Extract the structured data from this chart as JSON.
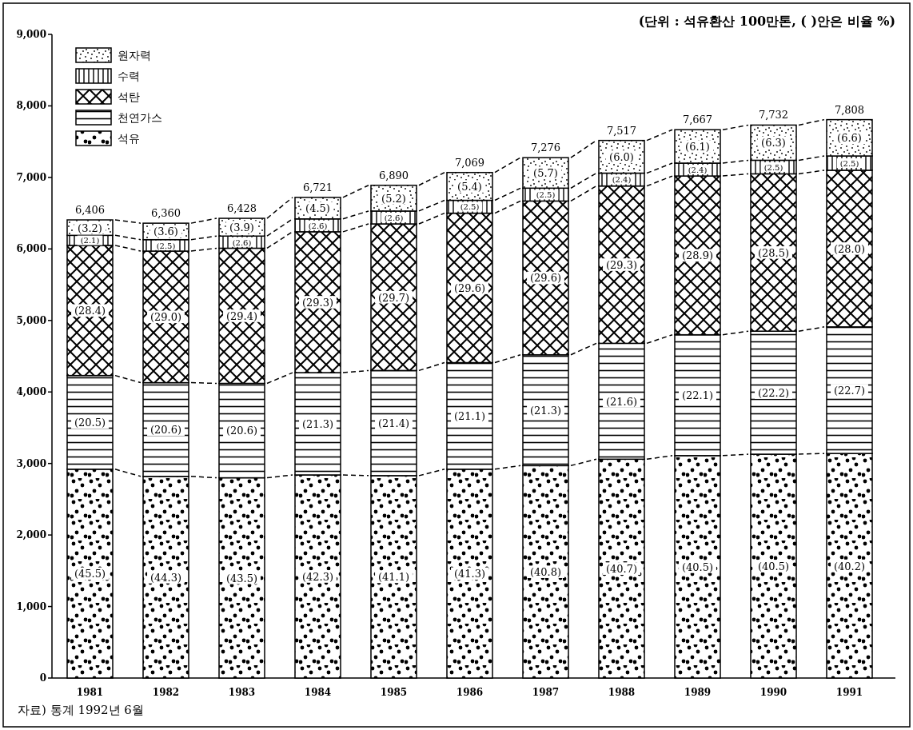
{
  "chart_data": {
    "type": "bar",
    "stacked": true,
    "subtitle": "(단위 : 석유환산 100만톤, (  )안은 비율 %)",
    "categories": [
      "1981",
      "1982",
      "1983",
      "1984",
      "1985",
      "1986",
      "1987",
      "1988",
      "1989",
      "1990",
      "1991"
    ],
    "series": [
      {
        "name": "석유",
        "color": "#000000",
        "values": [
          2920,
          2820,
          2800,
          2840,
          2830,
          2920,
          2970,
          3060,
          3110,
          3130,
          3140
        ]
      },
      {
        "name": "천연가스",
        "color": "#000000",
        "values": [
          1310,
          1310,
          1320,
          1430,
          1470,
          1490,
          1550,
          1620,
          1690,
          1720,
          1770
        ]
      },
      {
        "name": "석탄",
        "color": "#000000",
        "values": [
          1820,
          1840,
          1890,
          1970,
          2050,
          2090,
          2150,
          2200,
          2220,
          2200,
          2190
        ]
      },
      {
        "name": "수력",
        "color": "#000000",
        "values": [
          140,
          160,
          170,
          180,
          180,
          180,
          180,
          180,
          180,
          190,
          200
        ]
      },
      {
        "name": "원자력",
        "color": "#000000",
        "values": [
          216,
          230,
          248,
          301,
          360,
          389,
          426,
          457,
          467,
          492,
          508
        ]
      }
    ],
    "totals": [
      "6,406",
      "6,360",
      "6,428",
      "6,721",
      "6,890",
      "7,069",
      "7,276",
      "7,517",
      "7,667",
      "7,732",
      "7,808"
    ],
    "ylim": [
      0,
      9000
    ],
    "yticks": [
      0,
      {
        "value": 1000,
        "label": "1,000"
      },
      {
        "value": 2000,
        "label": "2,000"
      },
      {
        "value": 3000,
        "label": "3,000"
      },
      {
        "value": 4000,
        "label": "4,000"
      },
      {
        "value": 5000,
        "label": "5,000"
      },
      {
        "value": 6000,
        "label": "6,000"
      },
      {
        "value": 7000,
        "label": "7,000"
      },
      {
        "value": 8000,
        "label": "8,000"
      },
      {
        "value": 9000,
        "label": "9,000"
      }
    ],
    "grid": false,
    "legend": "top left",
    "annotations": [
      "(45.5)",
      "(44.3)",
      "(43.5)",
      "(42.3)",
      "(41.1)",
      "(41.3)",
      "(40.8)",
      "(40.7)",
      "(40.5)",
      "(40.5)",
      "(40.2)",
      "(20.5)",
      "(20.6)",
      "(20.6)",
      "(21.3)",
      "(21.4)",
      "(21.1)",
      "(21.3)",
      "(21.6)",
      "(22.1)",
      "(22.2)",
      "(22.7)",
      "(28.4)",
      "(29.0)",
      "(29.4)",
      "(29.3)",
      "(29.7)",
      "(29.6)",
      "(29.6)",
      "(29.3)",
      "(28.9)",
      "(28.5)",
      "(28.0)",
      "(2.1)",
      "(2.5)",
      "(2.6)",
      "(2.6)",
      "(2.6)",
      "(2.5)",
      "(2.5)",
      "(2.4)",
      "(2.4)",
      "(2.5)",
      "(2.5)",
      "(3.2)",
      "(3.6)",
      "(3.9)",
      "(4.5)",
      "(5.2)",
      "(5.4)",
      "(5.7)",
      "(6.0)",
      "(6.1)",
      "(6.3)",
      "(6.6)",
      "자료) 통계 1992년 6월"
    ]
  }
}
